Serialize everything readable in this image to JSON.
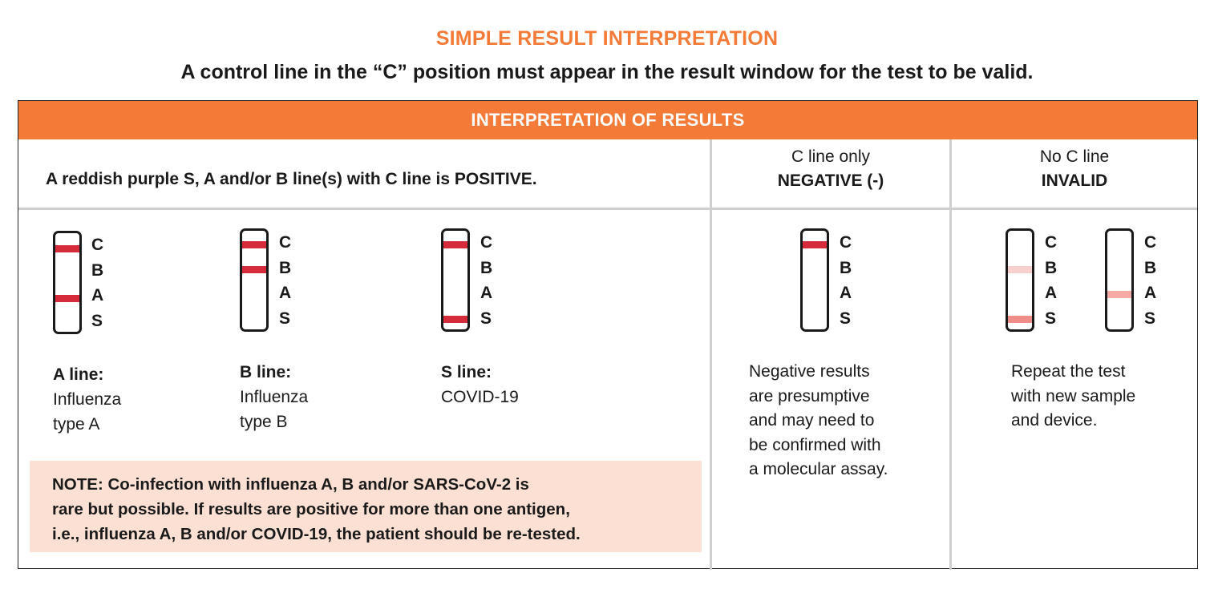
{
  "title": "SIMPLE RESULT INTERPRETATION",
  "subtitle": "A control line in the “C” position must appear in the result window for the test to be valid.",
  "table_header": "INTERPRETATION OF RESULTS",
  "positive": {
    "heading_prefix": "A reddish purple S, A and/or B line(s) with C line is ",
    "heading_bold": "POSITIVE.",
    "examples": [
      {
        "label_title": "A line:",
        "label_line1": "Influenza",
        "label_line2": "type A"
      },
      {
        "label_title": "B line:",
        "label_line1": "Influenza",
        "label_line2": "type B"
      },
      {
        "label_title": "S line:",
        "label_line1": "COVID-19",
        "label_line2": ""
      }
    ],
    "note_lines": [
      "NOTE: Co-infection with influenza A, B and/or SARS-CoV-2 is",
      "rare but possible. If results are positive for more than one antigen,",
      "i.e., influenza A, B and/or COVID-19, the patient should be re-tested."
    ]
  },
  "negative": {
    "heading_line1": "C line only",
    "heading_line2": "NEGATIVE (-)",
    "text_lines": [
      "Negative results",
      "are presumptive",
      "and may need to",
      "be confirmed with",
      "a molecular assay."
    ]
  },
  "invalid": {
    "heading_line1": "No C line",
    "heading_line2": "INVALID",
    "text_lines": [
      "Repeat the test",
      "with new sample",
      "and device."
    ]
  },
  "strip_letters": [
    "C",
    "B",
    "A",
    "S"
  ],
  "colors": {
    "accent": "#f47a38",
    "line_strong": "#d52b3a",
    "line_faint": "#f7d0cd",
    "line_medium": "#f08d88",
    "note_bg": "#fde0d4"
  }
}
